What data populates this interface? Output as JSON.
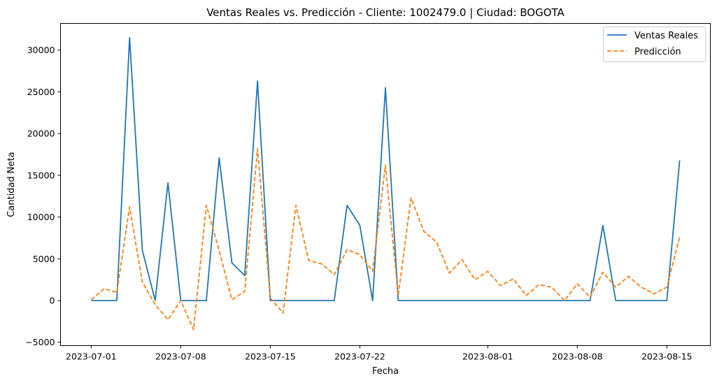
{
  "chart_data": {
    "type": "line",
    "title": "Ventas Reales vs. Predicción - Cliente: 1002479.0 | Ciudad: BOGOTA",
    "xlabel": "Fecha",
    "ylabel": "Cantidad Neta",
    "x_start": "2023-07-01",
    "x_tick_labels": [
      "2023-07-01",
      "2023-07-08",
      "2023-07-15",
      "2023-07-22",
      "2023-08-01",
      "2023-08-08",
      "2023-08-15"
    ],
    "x_tick_days": [
      0,
      7,
      14,
      21,
      31,
      38,
      45
    ],
    "xlim": [
      -2.4,
      48.4
    ],
    "ylim": [
      -5400,
      33200
    ],
    "y_ticks": [
      -5000,
      0,
      5000,
      10000,
      15000,
      20000,
      25000,
      30000
    ],
    "y_tick_labels": [
      "−5000",
      "0",
      "5000",
      "10000",
      "15000",
      "20000",
      "25000",
      "30000"
    ],
    "grid": false,
    "legend_position": "top-right",
    "series": [
      {
        "name": "Ventas Reales",
        "color": "#1f77b4",
        "style": "solid",
        "values": [
          0,
          0,
          0,
          31500,
          6000,
          0,
          14100,
          0,
          0,
          0,
          17100,
          4500,
          3000,
          26300,
          0,
          0,
          0,
          0,
          0,
          0,
          11400,
          9000,
          0,
          25500,
          0,
          0,
          0,
          0,
          0,
          0,
          0,
          0,
          0,
          0,
          0,
          0,
          0,
          0,
          0,
          0,
          9000,
          0,
          0,
          0,
          0,
          0,
          16800
        ]
      },
      {
        "name": "Predicción",
        "color": "#ff7f0e",
        "style": "dashed",
        "values": [
          100,
          1400,
          1000,
          11200,
          2200,
          -500,
          -2300,
          0,
          -3500,
          11400,
          6000,
          100,
          1100,
          18200,
          300,
          -1500,
          11400,
          4800,
          4400,
          3100,
          6100,
          5500,
          3500,
          16200,
          600,
          12300,
          8300,
          7000,
          3300,
          4900,
          2500,
          3500,
          1800,
          2600,
          600,
          1900,
          1600,
          0,
          2000,
          400,
          3400,
          1600,
          2900,
          1600,
          800,
          1600,
          7600
        ]
      }
    ]
  }
}
